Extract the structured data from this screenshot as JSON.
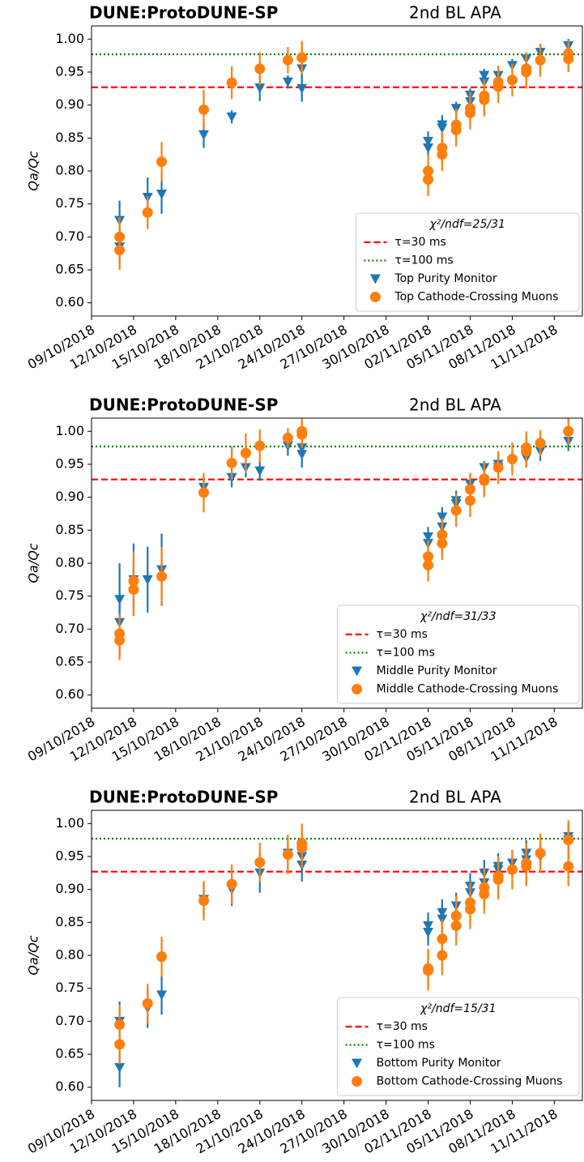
{
  "chart_data": [
    {
      "type": "scatter",
      "title": "DUNE:ProtoDUNE-SP",
      "subtitle": "2nd BL APA",
      "ylabel": "Qa/Qc",
      "xlim": [
        "2018-10-09",
        "2018-11-13"
      ],
      "xticks": [
        {
          "value": "2018-10-09",
          "label": "09/10/2018"
        },
        {
          "value": "2018-10-12",
          "label": "12/10/2018"
        },
        {
          "value": "2018-10-15",
          "label": "15/10/2018"
        },
        {
          "value": "2018-10-18",
          "label": "18/10/2018"
        },
        {
          "value": "2018-10-21",
          "label": "21/10/2018"
        },
        {
          "value": "2018-10-24",
          "label": "24/10/2018"
        },
        {
          "value": "2018-10-27",
          "label": "27/10/2018"
        },
        {
          "value": "2018-10-30",
          "label": "30/10/2018"
        },
        {
          "value": "2018-11-02",
          "label": "02/11/2018"
        },
        {
          "value": "2018-11-05",
          "label": "05/11/2018"
        },
        {
          "value": "2018-11-08",
          "label": "08/11/2018"
        },
        {
          "value": "2018-11-11",
          "label": "11/11/2018"
        }
      ],
      "ylim": [
        0.58,
        1.02
      ],
      "yticks": [
        {
          "value": 0.6,
          "label": "0.60"
        },
        {
          "value": 0.65,
          "label": "0.65"
        },
        {
          "value": 0.7,
          "label": "0.70"
        },
        {
          "value": 0.75,
          "label": "0.75"
        },
        {
          "value": 0.8,
          "label": "0.80"
        },
        {
          "value": 0.85,
          "label": "0.85"
        },
        {
          "value": 0.9,
          "label": "0.90"
        },
        {
          "value": 0.95,
          "label": "0.95"
        },
        {
          "value": 1.0,
          "label": "1.00"
        }
      ],
      "legend_title": "χ²/ndf=25/31",
      "legend": "lower right",
      "hlines": [
        {
          "name": "τ=30 ms",
          "value": 0.927,
          "color": "#ff0000",
          "style": "dashed"
        },
        {
          "name": "τ=100 ms",
          "value": 0.977,
          "color": "#008000",
          "style": "dotted"
        }
      ],
      "series": [
        {
          "name": "Top Purity Monitor",
          "color": "#1f77b4",
          "marker": "triangle_down",
          "x": [
            "2018-10-11",
            "2018-10-11",
            "2018-10-13",
            "2018-10-14",
            "2018-10-17",
            "2018-10-19",
            "2018-10-21",
            "2018-10-23",
            "2018-10-24",
            "2018-10-24",
            "2018-11-02",
            "2018-11-02",
            "2018-11-03",
            "2018-11-03",
            "2018-11-04",
            "2018-11-05",
            "2018-11-05",
            "2018-11-06",
            "2018-11-06",
            "2018-11-07",
            "2018-11-08",
            "2018-11-09",
            "2018-11-10",
            "2018-11-12",
            "2018-11-12"
          ],
          "values": [
            0.685,
            0.725,
            0.76,
            0.765,
            0.855,
            0.882,
            0.926,
            0.935,
            0.955,
            0.925,
            0.835,
            0.845,
            0.865,
            0.87,
            0.895,
            0.905,
            0.915,
            0.935,
            0.945,
            0.945,
            0.96,
            0.97,
            0.98,
            0.99,
            0.99
          ],
          "errors": [
            0.03,
            0.03,
            0.03,
            0.03,
            0.02,
            0.01,
            0.02,
            0.01,
            0.02,
            0.02,
            0.015,
            0.015,
            0.015,
            0.015,
            0.01,
            0.01,
            0.01,
            0.01,
            0.01,
            0.01,
            0.01,
            0.01,
            0.01,
            0.01,
            0.01
          ]
        },
        {
          "name": "Top Cathode-Crossing Muons",
          "color": "#ff7f0e",
          "marker": "circle",
          "x": [
            "2018-10-11",
            "2018-10-11",
            "2018-10-13",
            "2018-10-14",
            "2018-10-17",
            "2018-10-19",
            "2018-10-21",
            "2018-10-23",
            "2018-10-24",
            "2018-10-24",
            "2018-11-02",
            "2018-11-02",
            "2018-11-03",
            "2018-11-03",
            "2018-11-04",
            "2018-11-04",
            "2018-11-05",
            "2018-11-05",
            "2018-11-06",
            "2018-11-06",
            "2018-11-07",
            "2018-11-07",
            "2018-11-08",
            "2018-11-09",
            "2018-11-09",
            "2018-11-10",
            "2018-11-12",
            "2018-11-12"
          ],
          "values": [
            0.68,
            0.7,
            0.737,
            0.814,
            0.893,
            0.934,
            0.955,
            0.968,
            0.972,
            0.972,
            0.787,
            0.8,
            0.825,
            0.835,
            0.862,
            0.87,
            0.888,
            0.895,
            0.908,
            0.914,
            0.928,
            0.935,
            0.938,
            0.95,
            0.955,
            0.968,
            0.97,
            0.978
          ],
          "errors": [
            0.03,
            0.03,
            0.025,
            0.03,
            0.03,
            0.025,
            0.025,
            0.02,
            0.025,
            0.025,
            0.025,
            0.025,
            0.025,
            0.025,
            0.025,
            0.025,
            0.025,
            0.025,
            0.025,
            0.025,
            0.025,
            0.025,
            0.025,
            0.025,
            0.025,
            0.025,
            0.02,
            0.02
          ]
        }
      ]
    },
    {
      "type": "scatter",
      "title": "DUNE:ProtoDUNE-SP",
      "subtitle": "2nd BL APA",
      "ylabel": "Qa/Qc",
      "xlim": [
        "2018-10-09",
        "2018-11-13"
      ],
      "xticks": [
        {
          "value": "2018-10-09",
          "label": "09/10/2018"
        },
        {
          "value": "2018-10-12",
          "label": "12/10/2018"
        },
        {
          "value": "2018-10-15",
          "label": "15/10/2018"
        },
        {
          "value": "2018-10-18",
          "label": "18/10/2018"
        },
        {
          "value": "2018-10-21",
          "label": "21/10/2018"
        },
        {
          "value": "2018-10-24",
          "label": "24/10/2018"
        },
        {
          "value": "2018-10-27",
          "label": "27/10/2018"
        },
        {
          "value": "2018-10-30",
          "label": "30/10/2018"
        },
        {
          "value": "2018-11-02",
          "label": "02/11/2018"
        },
        {
          "value": "2018-11-05",
          "label": "05/11/2018"
        },
        {
          "value": "2018-11-08",
          "label": "08/11/2018"
        },
        {
          "value": "2018-11-11",
          "label": "11/11/2018"
        }
      ],
      "ylim": [
        0.58,
        1.02
      ],
      "yticks": [
        {
          "value": 0.6,
          "label": "0.60"
        },
        {
          "value": 0.65,
          "label": "0.65"
        },
        {
          "value": 0.7,
          "label": "0.70"
        },
        {
          "value": 0.75,
          "label": "0.75"
        },
        {
          "value": 0.8,
          "label": "0.80"
        },
        {
          "value": 0.85,
          "label": "0.85"
        },
        {
          "value": 0.9,
          "label": "0.90"
        },
        {
          "value": 0.95,
          "label": "0.95"
        },
        {
          "value": 1.0,
          "label": "1.00"
        }
      ],
      "legend_title": "χ²/ndf=31/33",
      "legend": "lower right",
      "hlines": [
        {
          "name": "τ=30 ms",
          "value": 0.927,
          "color": "#ff0000",
          "style": "dashed"
        },
        {
          "name": "τ=100 ms",
          "value": 0.977,
          "color": "#008000",
          "style": "dotted"
        }
      ],
      "series": [
        {
          "name": "Middle Purity Monitor",
          "color": "#1f77b4",
          "marker": "triangle_down",
          "x": [
            "2018-10-11",
            "2018-10-11",
            "2018-10-12",
            "2018-10-13",
            "2018-10-14",
            "2018-10-17",
            "2018-10-19",
            "2018-10-20",
            "2018-10-21",
            "2018-10-23",
            "2018-10-24",
            "2018-10-24",
            "2018-11-02",
            "2018-11-02",
            "2018-11-03",
            "2018-11-03",
            "2018-11-04",
            "2018-11-04",
            "2018-11-05",
            "2018-11-05",
            "2018-11-06",
            "2018-11-07",
            "2018-11-07",
            "2018-11-08",
            "2018-11-09",
            "2018-11-09",
            "2018-11-10",
            "2018-11-12"
          ],
          "values": [
            0.71,
            0.745,
            0.775,
            0.775,
            0.79,
            0.915,
            0.93,
            0.945,
            0.94,
            0.978,
            0.975,
            0.965,
            0.84,
            0.83,
            0.855,
            0.87,
            0.895,
            0.89,
            0.92,
            0.91,
            0.945,
            0.945,
            0.95,
            0.955,
            0.965,
            0.96,
            0.97,
            0.985
          ],
          "errors": [
            0.05,
            0.055,
            0.055,
            0.05,
            0.055,
            0.015,
            0.015,
            0.015,
            0.015,
            0.015,
            0.015,
            0.02,
            0.015,
            0.015,
            0.015,
            0.015,
            0.015,
            0.015,
            0.015,
            0.015,
            0.01,
            0.015,
            0.015,
            0.015,
            0.015,
            0.015,
            0.015,
            0.015
          ]
        },
        {
          "name": "Middle Cathode-Crossing Muons",
          "color": "#ff7f0e",
          "marker": "circle",
          "x": [
            "2018-10-11",
            "2018-10-11",
            "2018-10-12",
            "2018-10-12",
            "2018-10-14",
            "2018-10-17",
            "2018-10-19",
            "2018-10-20",
            "2018-10-21",
            "2018-10-23",
            "2018-10-24",
            "2018-10-24",
            "2018-11-02",
            "2018-11-02",
            "2018-11-03",
            "2018-11-03",
            "2018-11-04",
            "2018-11-05",
            "2018-11-05",
            "2018-11-06",
            "2018-11-06",
            "2018-11-07",
            "2018-11-08",
            "2018-11-09",
            "2018-11-09",
            "2018-11-10",
            "2018-11-12",
            "2018-11-12"
          ],
          "values": [
            0.683,
            0.693,
            0.773,
            0.76,
            0.78,
            0.907,
            0.952,
            0.967,
            0.978,
            0.99,
            0.995,
            1.0,
            0.797,
            0.81,
            0.83,
            0.843,
            0.88,
            0.895,
            0.912,
            0.925,
            0.928,
            0.945,
            0.958,
            0.97,
            0.975,
            0.982,
            1.0,
            1.0
          ],
          "errors": [
            0.03,
            0.03,
            0.045,
            0.04,
            0.045,
            0.03,
            0.025,
            0.03,
            0.025,
            0.015,
            0.02,
            0.02,
            0.025,
            0.025,
            0.025,
            0.025,
            0.025,
            0.025,
            0.025,
            0.025,
            0.025,
            0.025,
            0.025,
            0.025,
            0.025,
            0.02,
            0.02,
            0.02
          ]
        }
      ]
    },
    {
      "type": "scatter",
      "title": "DUNE:ProtoDUNE-SP",
      "subtitle": "2nd BL APA",
      "ylabel": "Qa/Qc",
      "xlim": [
        "2018-10-09",
        "2018-11-13"
      ],
      "xticks": [
        {
          "value": "2018-10-09",
          "label": "09/10/2018"
        },
        {
          "value": "2018-10-12",
          "label": "12/10/2018"
        },
        {
          "value": "2018-10-15",
          "label": "15/10/2018"
        },
        {
          "value": "2018-10-18",
          "label": "18/10/2018"
        },
        {
          "value": "2018-10-21",
          "label": "21/10/2018"
        },
        {
          "value": "2018-10-24",
          "label": "24/10/2018"
        },
        {
          "value": "2018-10-27",
          "label": "27/10/2018"
        },
        {
          "value": "2018-10-30",
          "label": "30/10/2018"
        },
        {
          "value": "2018-11-02",
          "label": "02/11/2018"
        },
        {
          "value": "2018-11-05",
          "label": "05/11/2018"
        },
        {
          "value": "2018-11-08",
          "label": "08/11/2018"
        },
        {
          "value": "2018-11-11",
          "label": "11/11/2018"
        }
      ],
      "ylim": [
        0.58,
        1.02
      ],
      "yticks": [
        {
          "value": 0.6,
          "label": "0.60"
        },
        {
          "value": 0.65,
          "label": "0.65"
        },
        {
          "value": 0.7,
          "label": "0.70"
        },
        {
          "value": 0.75,
          "label": "0.75"
        },
        {
          "value": 0.8,
          "label": "0.80"
        },
        {
          "value": 0.85,
          "label": "0.85"
        },
        {
          "value": 0.9,
          "label": "0.90"
        },
        {
          "value": 0.95,
          "label": "0.95"
        },
        {
          "value": 1.0,
          "label": "1.00"
        }
      ],
      "legend_title": "χ²/ndf=15/31",
      "legend": "lower right",
      "hlines": [
        {
          "name": "τ=30 ms",
          "value": 0.927,
          "color": "#ff0000",
          "style": "dashed"
        },
        {
          "name": "τ=100 ms",
          "value": 0.977,
          "color": "#008000",
          "style": "dotted"
        }
      ],
      "series": [
        {
          "name": "Bottom Purity Monitor",
          "color": "#1f77b4",
          "marker": "triangle_down",
          "x": [
            "2018-10-11",
            "2018-10-11",
            "2018-10-13",
            "2018-10-14",
            "2018-10-17",
            "2018-10-19",
            "2018-10-21",
            "2018-10-23",
            "2018-10-24",
            "2018-10-24",
            "2018-11-02",
            "2018-11-02",
            "2018-11-03",
            "2018-11-03",
            "2018-11-04",
            "2018-11-05",
            "2018-11-05",
            "2018-11-06",
            "2018-11-06",
            "2018-11-07",
            "2018-11-07",
            "2018-11-08",
            "2018-11-09",
            "2018-11-09",
            "2018-11-10",
            "2018-11-12",
            "2018-11-12"
          ],
          "values": [
            0.63,
            0.7,
            0.72,
            0.74,
            0.885,
            0.9,
            0.925,
            0.955,
            0.95,
            0.937,
            0.835,
            0.845,
            0.855,
            0.865,
            0.875,
            0.895,
            0.905,
            0.91,
            0.925,
            0.93,
            0.935,
            0.94,
            0.955,
            0.945,
            0.95,
            0.975,
            0.98
          ],
          "errors": [
            0.03,
            0.03,
            0.03,
            0.03,
            0.025,
            0.025,
            0.03,
            0.025,
            0.025,
            0.025,
            0.02,
            0.02,
            0.02,
            0.02,
            0.02,
            0.02,
            0.02,
            0.02,
            0.02,
            0.02,
            0.02,
            0.02,
            0.02,
            0.02,
            0.02,
            0.02,
            0.02
          ]
        },
        {
          "name": "Bottom Cathode-Crossing Muons",
          "color": "#ff7f0e",
          "marker": "circle",
          "x": [
            "2018-10-11",
            "2018-10-11",
            "2018-10-13",
            "2018-10-14",
            "2018-10-17",
            "2018-10-19",
            "2018-10-21",
            "2018-10-23",
            "2018-10-24",
            "2018-10-24",
            "2018-11-02",
            "2018-11-02",
            "2018-11-03",
            "2018-11-03",
            "2018-11-04",
            "2018-11-04",
            "2018-11-05",
            "2018-11-05",
            "2018-11-06",
            "2018-11-06",
            "2018-11-07",
            "2018-11-07",
            "2018-11-08",
            "2018-11-09",
            "2018-11-09",
            "2018-11-10",
            "2018-11-12",
            "2018-11-12"
          ],
          "values": [
            0.665,
            0.695,
            0.727,
            0.798,
            0.883,
            0.908,
            0.941,
            0.953,
            0.97,
            0.963,
            0.777,
            0.78,
            0.8,
            0.825,
            0.845,
            0.86,
            0.87,
            0.88,
            0.893,
            0.903,
            0.915,
            0.92,
            0.93,
            0.935,
            0.94,
            0.955,
            0.935,
            0.975
          ],
          "errors": [
            0.03,
            0.03,
            0.03,
            0.03,
            0.03,
            0.03,
            0.03,
            0.03,
            0.03,
            0.03,
            0.03,
            0.03,
            0.03,
            0.03,
            0.03,
            0.03,
            0.03,
            0.03,
            0.03,
            0.03,
            0.03,
            0.03,
            0.03,
            0.03,
            0.03,
            0.03,
            0.03,
            0.03
          ]
        }
      ]
    }
  ]
}
